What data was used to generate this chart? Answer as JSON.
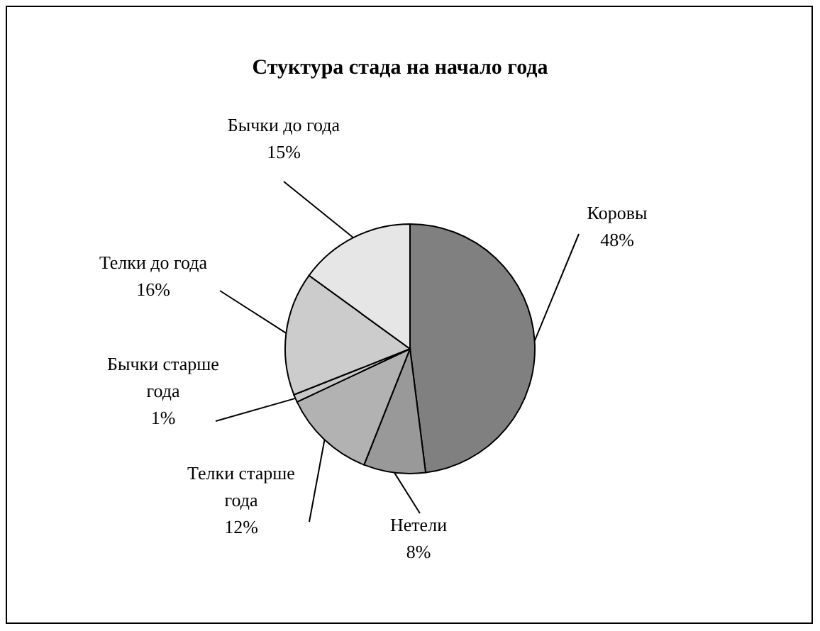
{
  "chart_data": {
    "type": "pie",
    "title": "Стуктура стада на начало года",
    "categories": [
      "Коровы",
      "Нетели",
      "Телки старше года",
      "Бычки старше года",
      "Телки до года",
      "Бычки до года"
    ],
    "values": [
      48,
      8,
      12,
      1,
      16,
      15
    ],
    "value_labels": [
      "48%",
      "8%",
      "12%",
      "1%",
      "16%",
      "15%"
    ],
    "colors": [
      "#808080",
      "#999999",
      "#b2b2b2",
      "#c8c8c8",
      "#cccccc",
      "#e6e6e6"
    ]
  }
}
